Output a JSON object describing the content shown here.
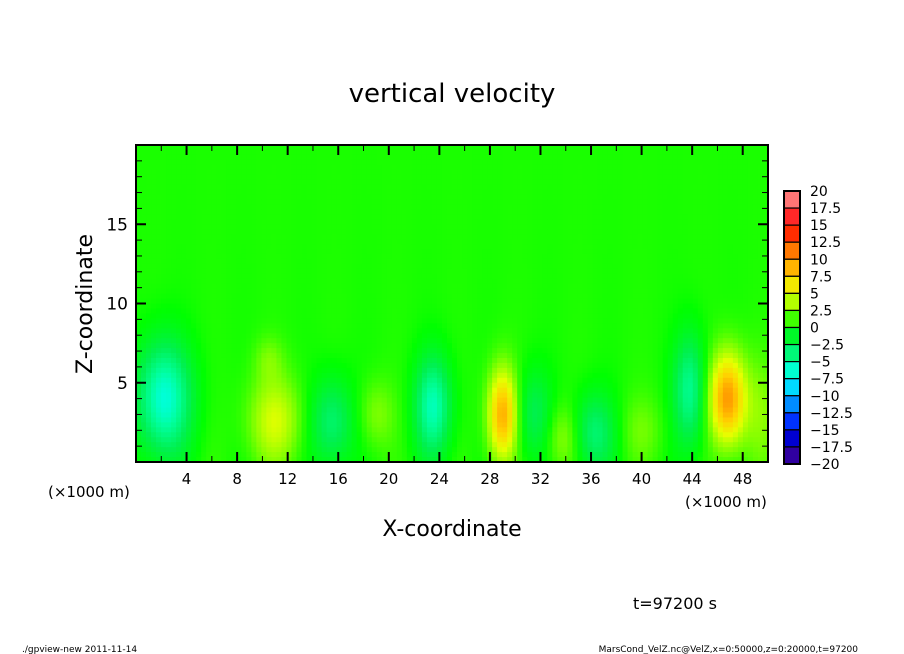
{
  "chart_data": {
    "type": "heatmap",
    "title": "vertical velocity",
    "xlabel": "X-coordinate",
    "ylabel": "Z-coordinate",
    "x_unit_label": "(×1000 m)",
    "xlim": [
      0,
      50
    ],
    "ylim": [
      0,
      20
    ],
    "x_ticks": [
      4,
      8,
      12,
      16,
      20,
      24,
      28,
      32,
      36,
      40,
      44,
      48
    ],
    "y_ticks": [
      5,
      10,
      15
    ],
    "colorbar": {
      "levels": [
        20,
        17.5,
        15,
        12.5,
        10,
        7.5,
        5,
        2.5,
        0,
        -2.5,
        -5,
        -7.5,
        -10,
        -12.5,
        -15,
        -17.5,
        -20
      ],
      "colors": [
        "#ff9a9a",
        "#ff5050",
        "#ff0000",
        "#ff5a00",
        "#ff9600",
        "#ffd200",
        "#e6ff00",
        "#80ff00",
        "#00ff00",
        "#00f050",
        "#00ffa0",
        "#00ffff",
        "#00b4ff",
        "#0064ff",
        "#0000ff",
        "#0000a0",
        "#6000a0"
      ]
    },
    "field": {
      "background": 0.5,
      "features": [
        {
          "x": 2.2,
          "z": 4.0,
          "amp": -7,
          "sx": 1.5,
          "sz": 2.5
        },
        {
          "x": 11.0,
          "z": 2.6,
          "amp": 4,
          "sx": 1.5,
          "sz": 2.0
        },
        {
          "x": 10.5,
          "z": 6.5,
          "amp": 1.5,
          "sx": 0.8,
          "sz": 1.0
        },
        {
          "x": 15.5,
          "z": 2.5,
          "amp": -4,
          "sx": 1.2,
          "sz": 2.0
        },
        {
          "x": 19.0,
          "z": 3.0,
          "amp": 2,
          "sx": 1.0,
          "sz": 1.5
        },
        {
          "x": 23.5,
          "z": 3.5,
          "amp": -6,
          "sx": 1.0,
          "sz": 2.2
        },
        {
          "x": 29.0,
          "z": 3.0,
          "amp": 8.5,
          "sx": 0.8,
          "sz": 2.0
        },
        {
          "x": 31.5,
          "z": 3.0,
          "amp": -3,
          "sx": 1.0,
          "sz": 2.0
        },
        {
          "x": 33.8,
          "z": 1.5,
          "amp": 2.5,
          "sx": 1.0,
          "sz": 1.5
        },
        {
          "x": 36.2,
          "z": 1.8,
          "amp": -4,
          "sx": 1.2,
          "sz": 1.8
        },
        {
          "x": 40.0,
          "z": 2.0,
          "amp": 1.5,
          "sx": 1.2,
          "sz": 1.5
        },
        {
          "x": 43.8,
          "z": 4.5,
          "amp": -5,
          "sx": 0.9,
          "sz": 2.5
        },
        {
          "x": 46.8,
          "z": 4.0,
          "amp": 9.5,
          "sx": 1.0,
          "sz": 2.0
        },
        {
          "x": 49.5,
          "z": 3.0,
          "amp": 2,
          "sx": 1.0,
          "sz": 2.5
        }
      ]
    }
  },
  "annotations": {
    "time": "t=97200 s",
    "footer_left": "./gpview-new   2011-11-14",
    "footer_right": "MarsCond_VelZ.nc@VelZ,x=0:50000,z=0:20000,t=97200"
  }
}
